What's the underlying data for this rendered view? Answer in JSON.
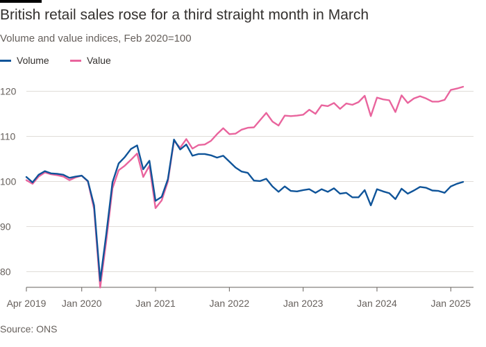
{
  "header": {
    "title": "British retail sales rose for a third straight month in March",
    "subtitle": "Volume and value indices, Feb 2020=100"
  },
  "footer": {
    "source": "Source: ONS"
  },
  "colors": {
    "volume": "#0f5499",
    "value": "#e9649d",
    "grid": "#e0dcd8",
    "axis": "#66605c"
  },
  "chart_data": {
    "type": "line",
    "title": "British retail sales rose for a third straight month in March",
    "subtitle": "Volume and value indices, Feb 2020=100",
    "xlabel": "",
    "ylabel": "",
    "ylim": [
      75,
      123
    ],
    "yticks": [
      80,
      90,
      100,
      110,
      120
    ],
    "x_start": "2019-04",
    "x_end": "2025-03",
    "xticks": [
      {
        "label": "Apr 2019",
        "date": "2019-04"
      },
      {
        "label": "Jan 2020",
        "date": "2020-01"
      },
      {
        "label": "Jan 2021",
        "date": "2021-01"
      },
      {
        "label": "Jan 2022",
        "date": "2022-01"
      },
      {
        "label": "Jan 2023",
        "date": "2023-01"
      },
      {
        "label": "Jan 2024",
        "date": "2024-01"
      },
      {
        "label": "Jan 2025",
        "date": "2025-01"
      }
    ],
    "grid": true,
    "legend_position": "top-left",
    "series": [
      {
        "name": "Volume",
        "color": "#0f5499",
        "values": [
          101.0,
          99.8,
          101.5,
          102.3,
          101.8,
          101.7,
          101.5,
          100.8,
          101.1,
          101.3,
          100.1,
          94.7,
          78.0,
          88.5,
          99.8,
          104.0,
          105.4,
          107.2,
          108.0,
          102.7,
          104.6,
          95.7,
          96.6,
          100.5,
          109.3,
          107.1,
          108.2,
          105.7,
          106.1,
          106.1,
          105.8,
          105.3,
          105.7,
          104.4,
          103.1,
          102.2,
          101.9,
          100.2,
          100.1,
          100.6,
          98.9,
          97.7,
          98.9,
          97.9,
          97.8,
          98.1,
          98.3,
          97.5,
          98.3,
          97.7,
          98.5,
          97.3,
          97.5,
          96.5,
          96.5,
          98.1,
          94.7,
          98.3,
          97.8,
          97.4,
          96.1,
          98.4,
          97.3,
          98.0,
          98.8,
          98.6,
          98.0,
          97.9,
          97.5,
          98.9,
          99.5,
          99.9
        ]
      },
      {
        "name": "Value",
        "color": "#e9649d",
        "values": [
          100.3,
          99.5,
          101.1,
          102.0,
          101.6,
          101.4,
          101.1,
          100.3,
          100.9,
          101.3,
          100.0,
          93.9,
          76.5,
          87.0,
          98.5,
          102.5,
          103.5,
          104.8,
          106.2,
          101.0,
          103.5,
          94.1,
          95.8,
          100.0,
          109.0,
          107.5,
          109.4,
          107.3,
          108.1,
          108.2,
          109.0,
          110.5,
          111.8,
          110.5,
          110.6,
          111.5,
          111.9,
          112.0,
          113.6,
          115.2,
          113.3,
          112.4,
          114.6,
          114.5,
          114.6,
          114.8,
          115.9,
          115.0,
          116.9,
          116.7,
          117.4,
          116.1,
          117.3,
          117.0,
          117.6,
          119.0,
          114.5,
          118.6,
          118.2,
          118.0,
          115.4,
          119.1,
          117.4,
          118.4,
          118.9,
          118.4,
          117.7,
          117.7,
          118.1,
          120.3,
          120.6,
          121.0
        ]
      }
    ]
  }
}
